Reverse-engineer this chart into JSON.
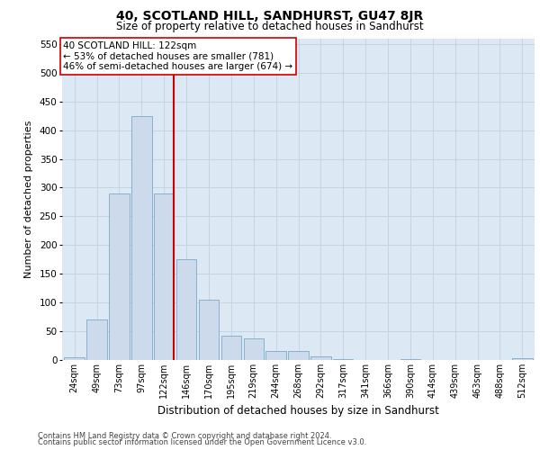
{
  "title": "40, SCOTLAND HILL, SANDHURST, GU47 8JR",
  "subtitle": "Size of property relative to detached houses in Sandhurst",
  "xlabel": "Distribution of detached houses by size in Sandhurst",
  "ylabel": "Number of detached properties",
  "categories": [
    "24sqm",
    "49sqm",
    "73sqm",
    "97sqm",
    "122sqm",
    "146sqm",
    "170sqm",
    "195sqm",
    "219sqm",
    "244sqm",
    "268sqm",
    "292sqm",
    "317sqm",
    "341sqm",
    "366sqm",
    "390sqm",
    "414sqm",
    "439sqm",
    "463sqm",
    "488sqm",
    "512sqm"
  ],
  "values": [
    5,
    70,
    290,
    425,
    290,
    175,
    105,
    43,
    38,
    15,
    15,
    6,
    1,
    0,
    0,
    2,
    0,
    0,
    0,
    0,
    3
  ],
  "bar_color": "#ccdaeb",
  "bar_edge_color": "#7aaac8",
  "grid_color": "#c5d4e3",
  "vline_x_idx": 4,
  "vline_color": "#cc0000",
  "annotation_text": "40 SCOTLAND HILL: 122sqm\n← 53% of detached houses are smaller (781)\n46% of semi-detached houses are larger (674) →",
  "annotation_box_facecolor": "#ffffff",
  "annotation_box_edgecolor": "#cc0000",
  "ylim": [
    0,
    560
  ],
  "yticks": [
    0,
    50,
    100,
    150,
    200,
    250,
    300,
    350,
    400,
    450,
    500,
    550
  ],
  "background_color": "#dce8f4",
  "footer_line1": "Contains HM Land Registry data © Crown copyright and database right 2024.",
  "footer_line2": "Contains public sector information licensed under the Open Government Licence v3.0.",
  "title_fontsize": 10,
  "subtitle_fontsize": 8.5,
  "ylabel_fontsize": 8,
  "xlabel_fontsize": 8.5,
  "tick_fontsize": 7,
  "footer_fontsize": 6,
  "annotation_fontsize": 7.5
}
